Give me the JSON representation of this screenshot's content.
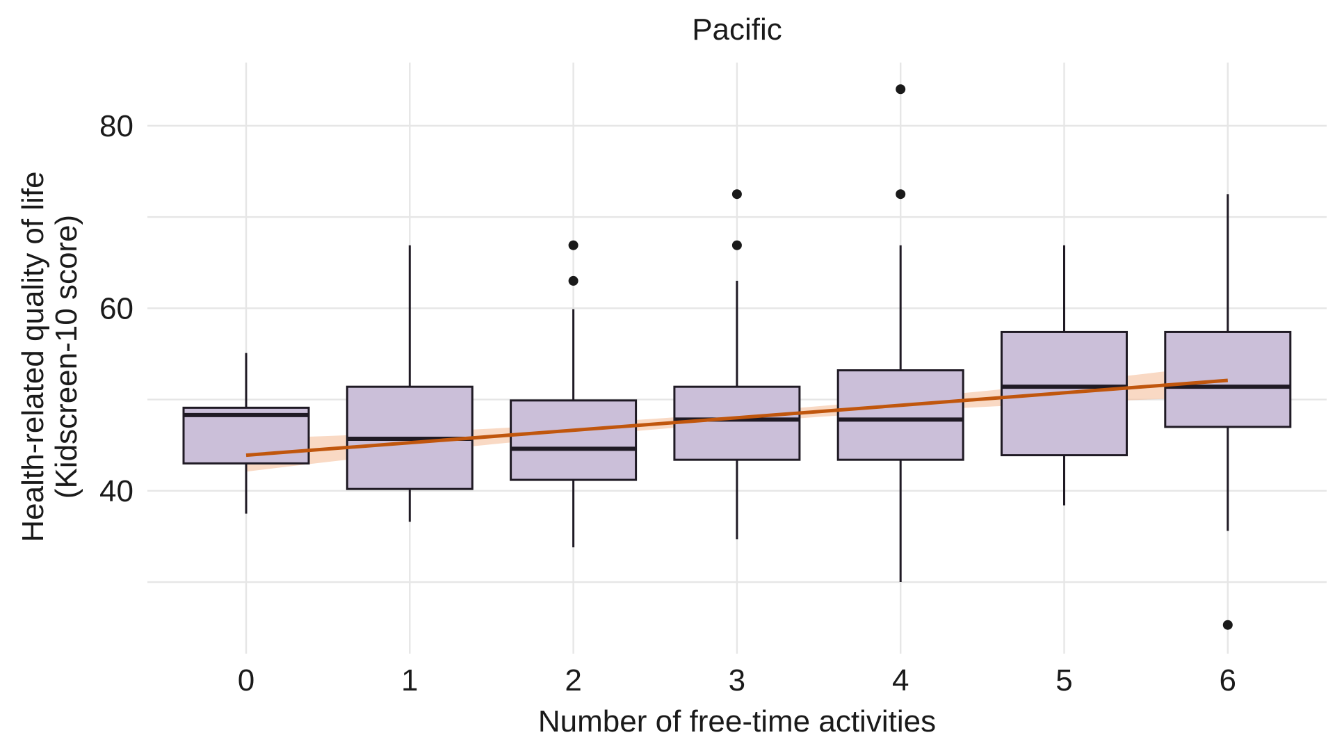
{
  "chart_data": {
    "type": "box",
    "title": "Pacific",
    "xlabel": "Number of free-time activities",
    "ylabel": [
      "Health-related quality of life",
      "(Kidscreen-10 score)"
    ],
    "categories": [
      "0",
      "1",
      "2",
      "3",
      "4",
      "5",
      "6"
    ],
    "ylim": [
      22,
      87
    ],
    "yticks": [
      40,
      60,
      80
    ],
    "y_minor_gridlines": [
      30,
      50,
      70
    ],
    "grid": true,
    "boxes": [
      {
        "category": "0",
        "whisker_low": 37.5,
        "q1": 43.0,
        "median": 48.3,
        "q3": 49.1,
        "whisker_high": 55.1,
        "outliers": []
      },
      {
        "category": "1",
        "whisker_low": 36.6,
        "q1": 40.2,
        "median": 45.7,
        "q3": 51.4,
        "whisker_high": 66.9,
        "outliers": []
      },
      {
        "category": "2",
        "whisker_low": 33.8,
        "q1": 41.2,
        "median": 44.6,
        "q3": 49.9,
        "whisker_high": 59.9,
        "outliers": [
          63.0,
          66.9
        ]
      },
      {
        "category": "3",
        "whisker_low": 34.7,
        "q1": 43.4,
        "median": 47.8,
        "q3": 51.4,
        "whisker_high": 63.0,
        "outliers": [
          66.9,
          72.5
        ]
      },
      {
        "category": "4",
        "whisker_low": 30.0,
        "q1": 43.4,
        "median": 47.8,
        "q3": 53.2,
        "whisker_high": 66.9,
        "outliers": [
          72.5,
          84.0
        ]
      },
      {
        "category": "5",
        "whisker_low": 38.4,
        "q1": 43.9,
        "median": 51.4,
        "q3": 57.4,
        "whisker_high": 66.9,
        "outliers": []
      },
      {
        "category": "6",
        "whisker_low": 35.6,
        "q1": 47.0,
        "median": 51.4,
        "q3": 57.4,
        "whisker_high": 72.5,
        "outliers": [
          25.3
        ]
      }
    ],
    "trend_line": {
      "x_start": 0,
      "y_start": 43.9,
      "x_end": 6,
      "y_end": 52.1,
      "ci_halfwidth_ends": 1.8,
      "ci_halfwidth_mid": 0.55
    },
    "colors": {
      "box_fill": "#cbbfd9",
      "box_stroke": "#1f1a24",
      "trend_line": "#c0560d",
      "trend_ribbon": "#f5bf9c",
      "grid": "#e6e6e6",
      "outlier": "#1a1a1a"
    }
  }
}
